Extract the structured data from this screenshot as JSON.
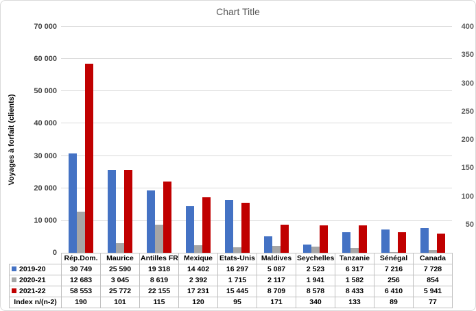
{
  "chart_data": {
    "type": "bar",
    "title": "Chart Title",
    "ylabel": "Voyages à forfait (clients)",
    "categories": [
      "Rép.Dom.",
      "Maurice",
      "Antilles FR",
      "Mexique",
      "Etats-Unis",
      "Maldives",
      "Seychelles",
      "Tanzanie",
      "Sénégal",
      "Canada"
    ],
    "series": [
      {
        "name": "2019-20",
        "color": "#4472C4",
        "values": [
          30749,
          25590,
          19318,
          14402,
          16297,
          5087,
          2523,
          6317,
          7216,
          7728
        ]
      },
      {
        "name": "2020-21",
        "color": "#A6A6A6",
        "values": [
          12683,
          3045,
          8619,
          2392,
          1715,
          2117,
          1941,
          1582,
          256,
          854
        ]
      },
      {
        "name": "2021-22",
        "color": "#C00000",
        "values": [
          58553,
          25772,
          22155,
          17231,
          15445,
          8709,
          8578,
          8433,
          6410,
          5941
        ]
      }
    ],
    "index_row": {
      "name": "Index n/(n-2)",
      "values": [
        190,
        101,
        115,
        120,
        95,
        171,
        340,
        133,
        89,
        77
      ]
    },
    "left_axis": {
      "min": 0,
      "max": 70000,
      "step": 10000,
      "show_zero": true
    },
    "right_axis": {
      "min": 0,
      "max": 400,
      "step": 50,
      "show_zero": false
    },
    "grid": true,
    "legend_position": "table",
    "gridline_color": "#d9d9d9",
    "number_group_separator": " "
  }
}
